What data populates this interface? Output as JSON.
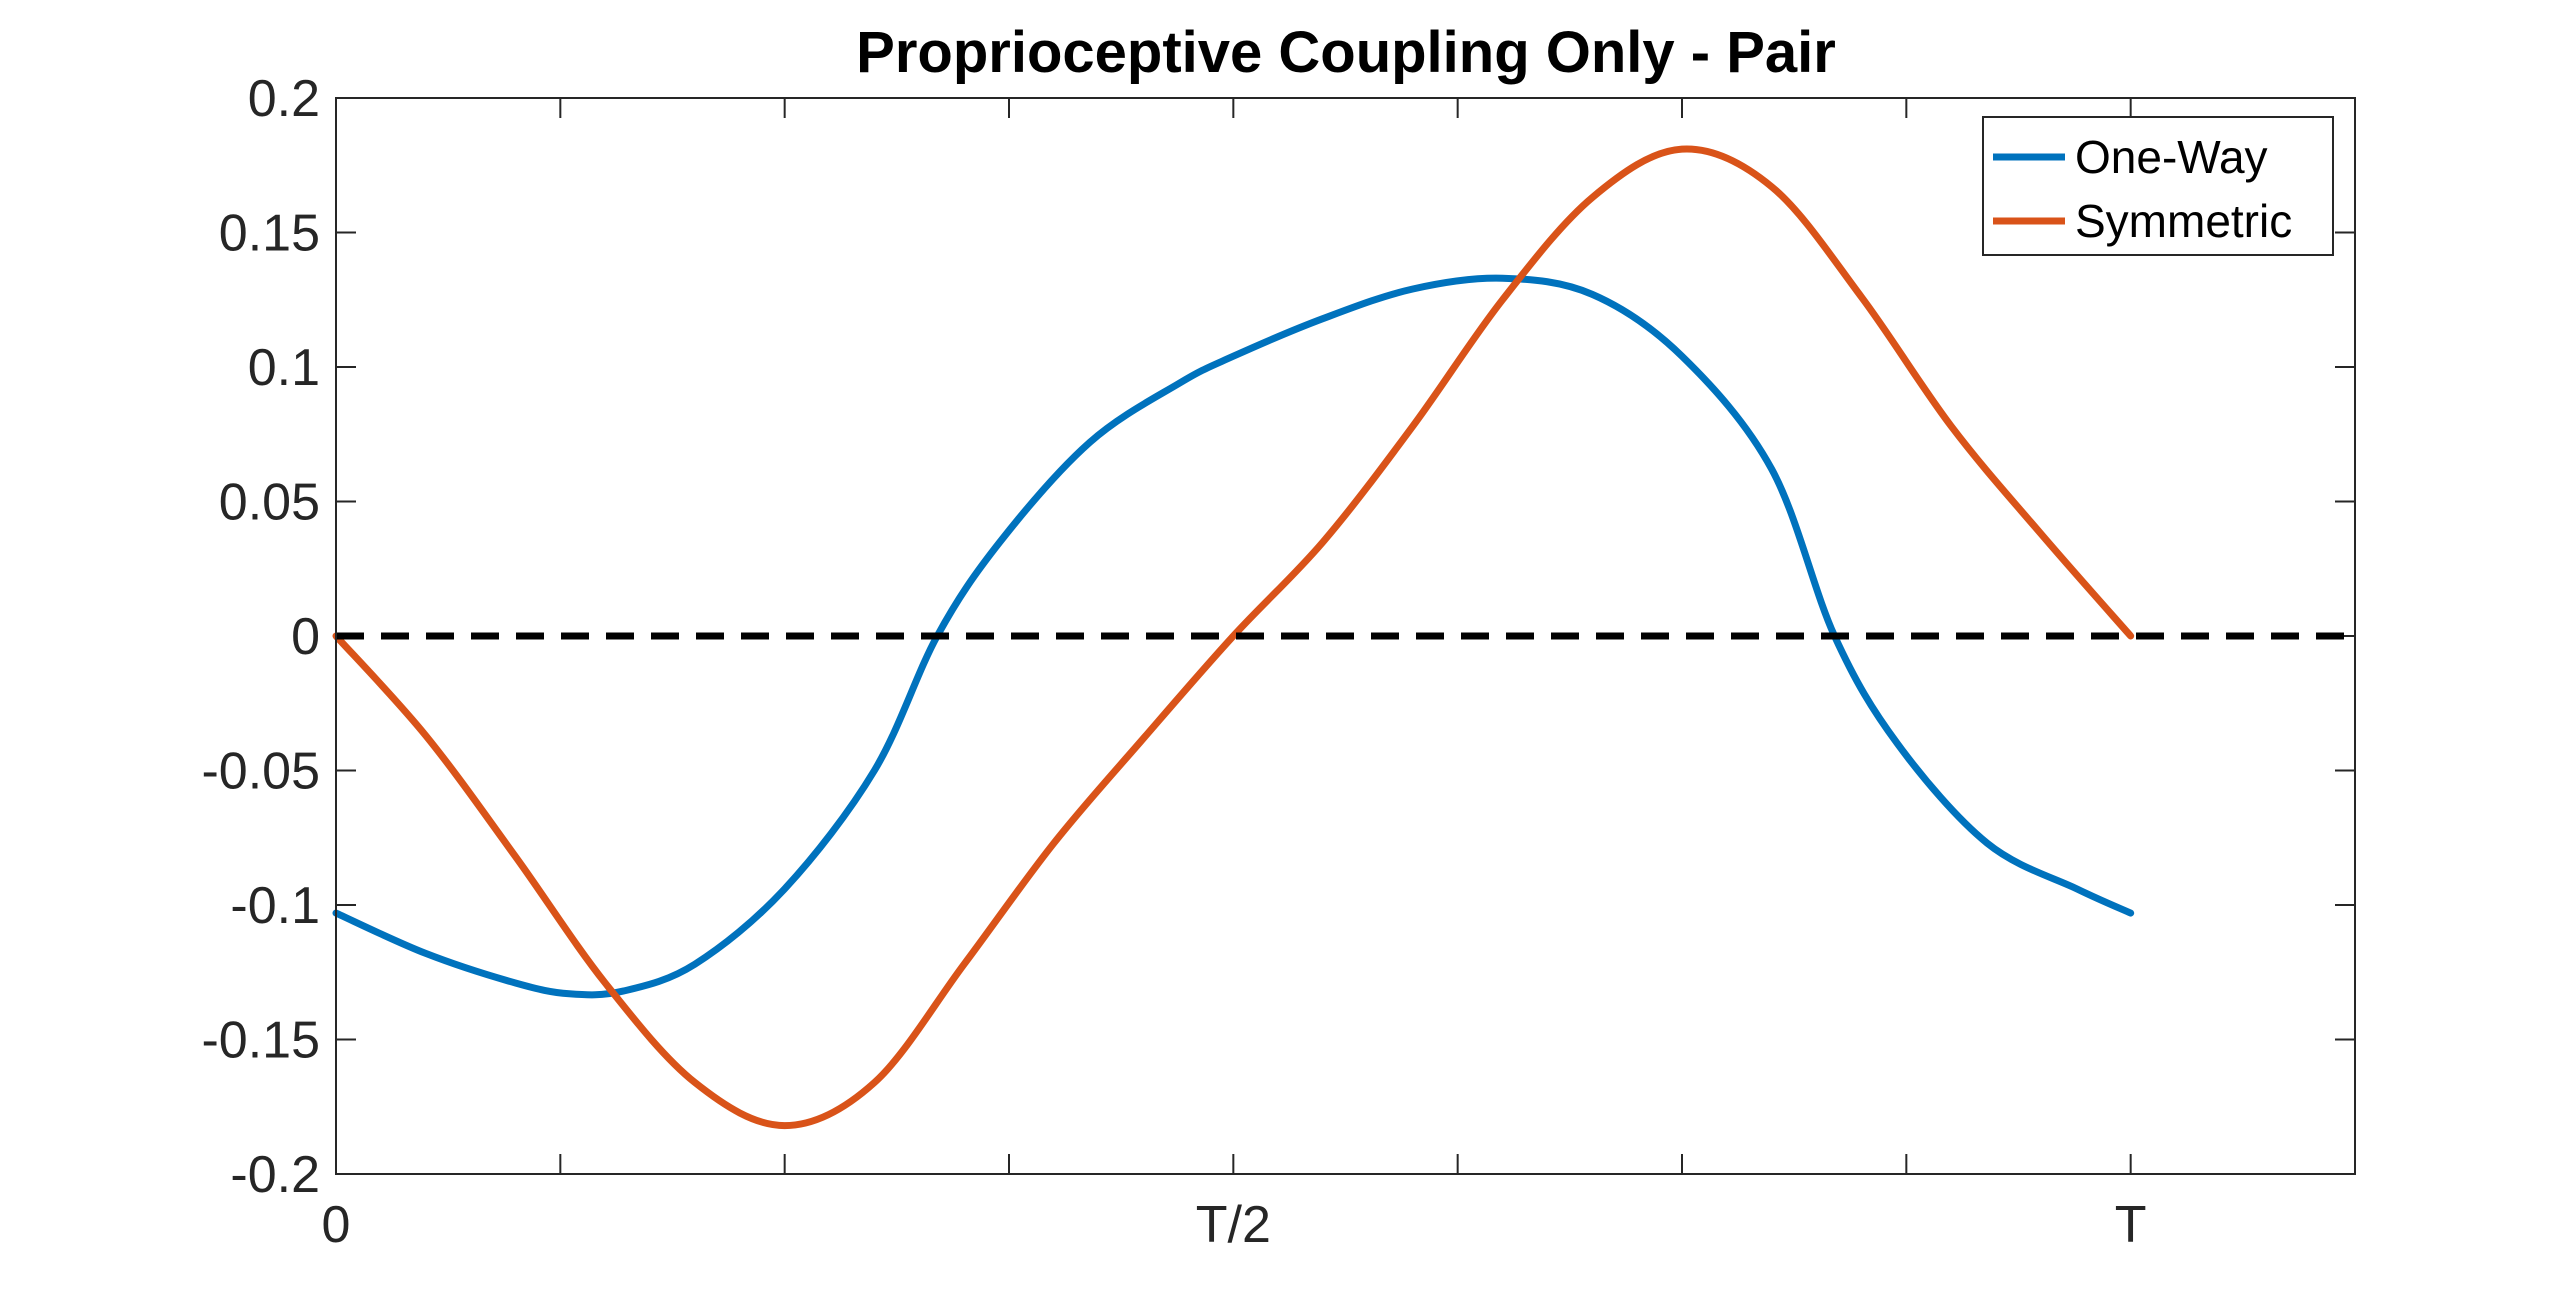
{
  "chart_data": {
    "type": "line",
    "title": "Proprioceptive Coupling Only - Pair",
    "xlabel": "",
    "ylabel": "",
    "xlim": [
      0,
      1.125
    ],
    "ylim": [
      -0.2,
      0.2
    ],
    "x_ticks": [
      {
        "value": 0,
        "label": "0"
      },
      {
        "value": 0.125,
        "label": ""
      },
      {
        "value": 0.25,
        "label": ""
      },
      {
        "value": 0.375,
        "label": ""
      },
      {
        "value": 0.5,
        "label": "T/2"
      },
      {
        "value": 0.625,
        "label": ""
      },
      {
        "value": 0.75,
        "label": ""
      },
      {
        "value": 0.875,
        "label": ""
      },
      {
        "value": 1.0,
        "label": "T"
      },
      {
        "value": 1.125,
        "label": ""
      }
    ],
    "y_ticks": [
      {
        "value": 0.2,
        "label": "0.2"
      },
      {
        "value": 0.15,
        "label": "0.15"
      },
      {
        "value": 0.1,
        "label": "0.1"
      },
      {
        "value": 0.05,
        "label": "0.05"
      },
      {
        "value": 0,
        "label": "0"
      },
      {
        "value": -0.05,
        "label": "-0.05"
      },
      {
        "value": -0.1,
        "label": "-0.1"
      },
      {
        "value": -0.15,
        "label": "-0.15"
      },
      {
        "value": -0.2,
        "label": "-0.2"
      }
    ],
    "grid": false,
    "legend_position": "top-right",
    "reference_line": {
      "y": 0,
      "style": "dashed",
      "color": "#000000"
    },
    "series": [
      {
        "name": "One-Way",
        "color": "#0072BD",
        "points": [
          [
            0,
            -0.103
          ],
          [
            0.05,
            -0.118
          ],
          [
            0.1,
            -0.129
          ],
          [
            0.13,
            -0.133
          ],
          [
            0.16,
            -0.132
          ],
          [
            0.2,
            -0.122
          ],
          [
            0.25,
            -0.094
          ],
          [
            0.3,
            -0.05
          ],
          [
            0.335,
            0.0
          ],
          [
            0.37,
            0.035
          ],
          [
            0.42,
            0.072
          ],
          [
            0.47,
            0.094
          ],
          [
            0.5,
            0.104
          ],
          [
            0.55,
            0.118
          ],
          [
            0.6,
            0.129
          ],
          [
            0.65,
            0.133
          ],
          [
            0.7,
            0.127
          ],
          [
            0.75,
            0.104
          ],
          [
            0.8,
            0.062
          ],
          [
            0.835,
            0.0
          ],
          [
            0.87,
            -0.04
          ],
          [
            0.92,
            -0.077
          ],
          [
            0.97,
            -0.094
          ],
          [
            1.0,
            -0.103
          ]
        ]
      },
      {
        "name": "Symmetric",
        "color": "#D95319",
        "points": [
          [
            0,
            0.0
          ],
          [
            0.05,
            -0.037
          ],
          [
            0.1,
            -0.082
          ],
          [
            0.15,
            -0.129
          ],
          [
            0.2,
            -0.166
          ],
          [
            0.25,
            -0.182
          ],
          [
            0.3,
            -0.166
          ],
          [
            0.35,
            -0.122
          ],
          [
            0.4,
            -0.077
          ],
          [
            0.45,
            -0.038
          ],
          [
            0.5,
            0.0
          ],
          [
            0.55,
            0.035
          ],
          [
            0.6,
            0.078
          ],
          [
            0.65,
            0.125
          ],
          [
            0.7,
            0.163
          ],
          [
            0.75,
            0.181
          ],
          [
            0.8,
            0.167
          ],
          [
            0.85,
            0.126
          ],
          [
            0.9,
            0.078
          ],
          [
            0.95,
            0.038
          ],
          [
            1.0,
            0.0
          ]
        ]
      }
    ]
  }
}
